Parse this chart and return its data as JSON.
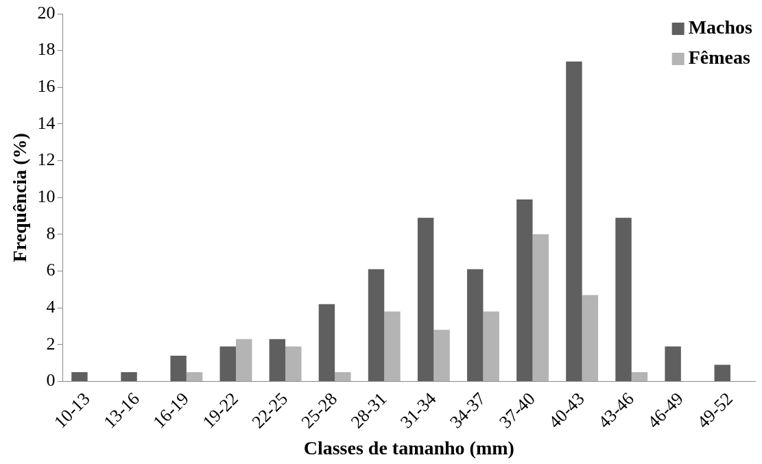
{
  "chart_data": {
    "type": "bar",
    "xlabel": "Classes de tamanho (mm)",
    "ylabel": "Frequência (%)",
    "categories": [
      "10-13",
      "13-16",
      "16-19",
      "19-22",
      "22-25",
      "25-28",
      "28-31",
      "31-34",
      "34-37",
      "37-40",
      "40-43",
      "43-46",
      "46-49",
      "49-52"
    ],
    "series": [
      {
        "name": "Machos",
        "color": "#5f5f5f",
        "values": [
          0.5,
          0.5,
          1.4,
          1.9,
          2.3,
          4.2,
          6.1,
          8.9,
          6.1,
          9.9,
          17.4,
          8.9,
          1.9,
          0.9
        ]
      },
      {
        "name": "Fêmeas",
        "color": "#b4b4b4",
        "values": [
          0,
          0,
          0.5,
          2.3,
          1.9,
          0.5,
          3.8,
          2.8,
          3.8,
          8.0,
          4.7,
          0.5,
          0,
          0
        ]
      }
    ],
    "ylim": [
      0,
      20
    ],
    "yticks": [
      0,
      2,
      4,
      6,
      8,
      10,
      12,
      14,
      16,
      18,
      20
    ],
    "grid": false,
    "legend": "top right"
  }
}
